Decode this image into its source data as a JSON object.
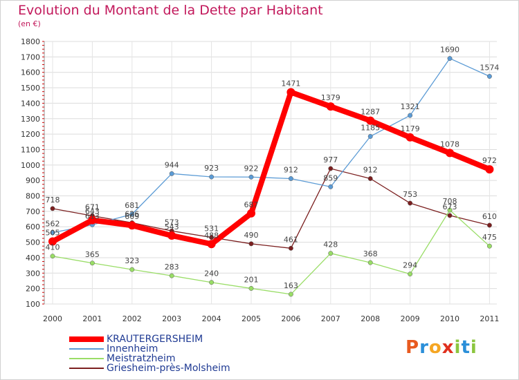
{
  "title": "Evolution du Montant de la Dette par Habitant",
  "subtitle": "(en €)",
  "logo": {
    "letters": [
      "P",
      "r",
      "o",
      "x",
      "i",
      "t",
      "i"
    ],
    "colors": [
      "#e85a1f",
      "#2b8fd9",
      "#f5a623",
      "#e0301e",
      "#8cc63f",
      "#2b8fd9",
      "#8cc63f"
    ]
  },
  "chart_data": {
    "type": "line",
    "title": "Evolution du Montant de la Dette par Habitant",
    "ylabel": "(en €)",
    "xlabel": "",
    "x": [
      "2000",
      "2001",
      "2002",
      "2003",
      "2004",
      "2005",
      "2006",
      "2007",
      "2008",
      "2009",
      "2010",
      "2011"
    ],
    "ylim": [
      100,
      1800
    ],
    "yticks": [
      100,
      200,
      300,
      400,
      500,
      600,
      700,
      800,
      900,
      1000,
      1100,
      1200,
      1300,
      1400,
      1500,
      1600,
      1700,
      1800
    ],
    "grid": true,
    "legend_position": "bottom-left",
    "series": [
      {
        "name": "KRAUTERGERSHEIM",
        "color": "#ff0000",
        "values": [
          505,
          643,
          609,
          543,
          488,
          687,
          1471,
          1379,
          1287,
          1179,
          1078,
          972
        ]
      },
      {
        "name": "Innenheim",
        "color": "#5b9bd5",
        "values": [
          562,
          613,
          681,
          944,
          923,
          922,
          912,
          859,
          1185,
          1321,
          1690,
          1574
        ]
      },
      {
        "name": "Meistratzheim",
        "color": "#99dd66",
        "values": [
          410,
          365,
          323,
          283,
          240,
          201,
          163,
          428,
          368,
          294,
          708,
          475
        ]
      },
      {
        "name": "Griesheim-près-Molsheim",
        "color": "#7b1f1f",
        "values": [
          718,
          671,
          626,
          573,
          531,
          490,
          461,
          977,
          912,
          753,
          673,
          610
        ]
      }
    ],
    "labels_shown": [
      [
        "505",
        "643",
        "609",
        "543",
        "488",
        "687",
        "1471",
        "1379",
        "1287",
        "1179",
        "1078",
        "972"
      ],
      [
        "562",
        "613",
        "681",
        "944",
        "923",
        "922",
        "912",
        "859",
        "1185",
        "1321",
        "1690",
        "1574"
      ],
      [
        "410",
        "365",
        "323",
        "283",
        "240",
        "201",
        "163",
        "428",
        "368",
        "294",
        "708",
        "475"
      ],
      [
        "718",
        "671",
        "626",
        "573",
        "531",
        "490",
        "461",
        "977",
        "912",
        "753",
        "673",
        "610"
      ]
    ]
  }
}
